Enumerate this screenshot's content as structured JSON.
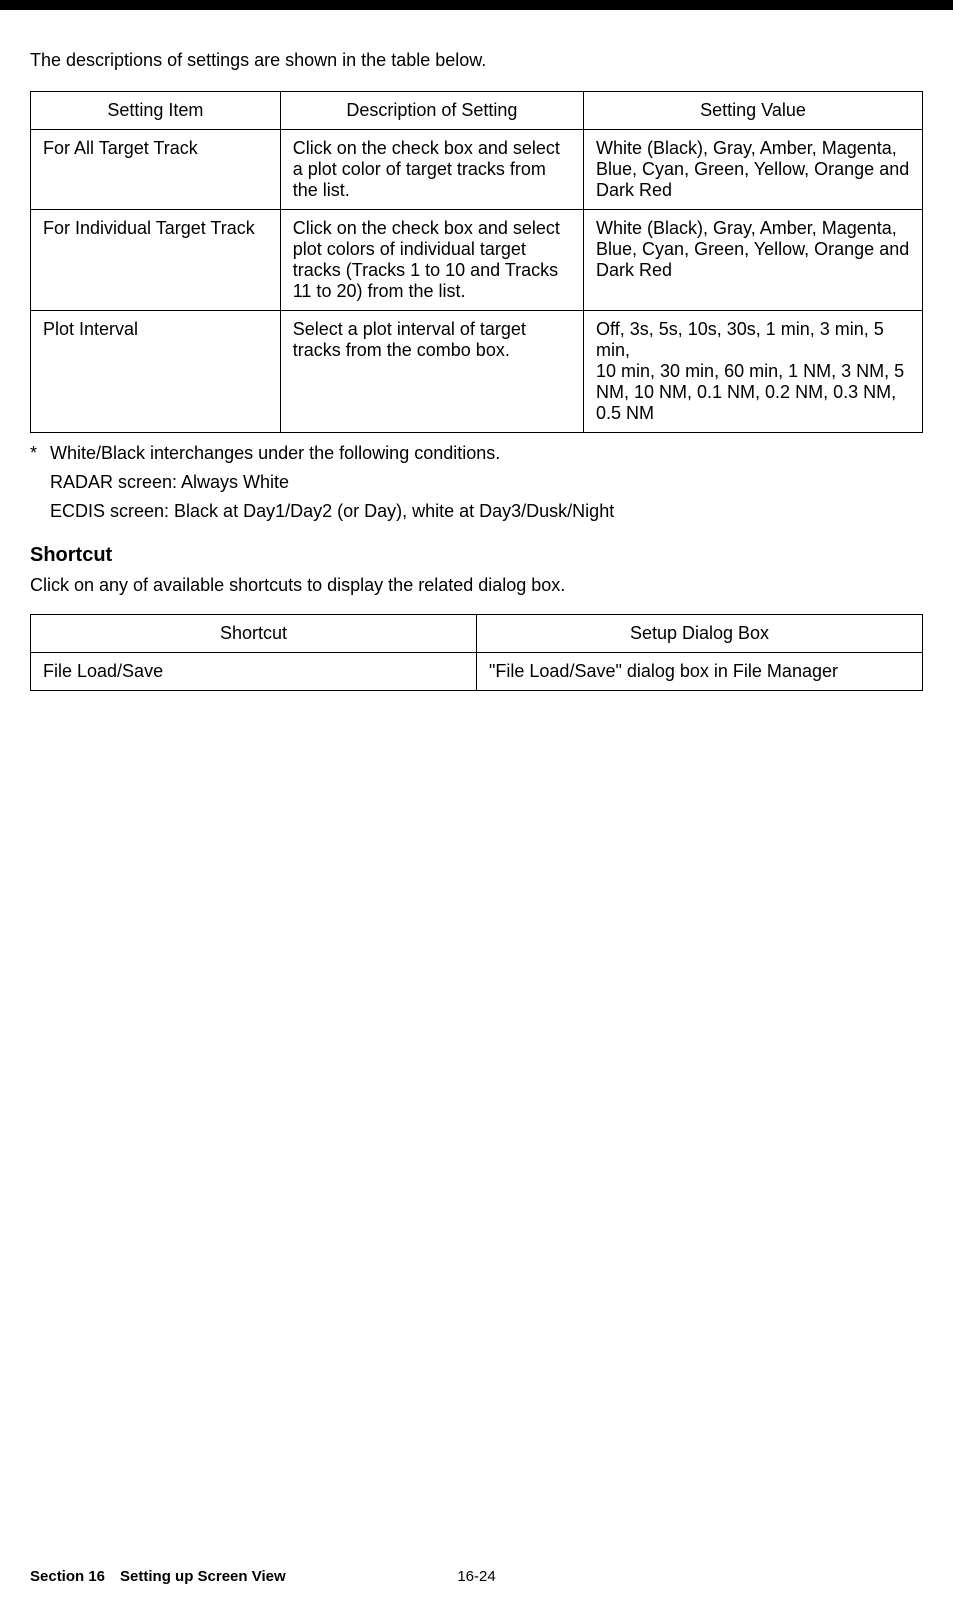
{
  "intro": "The descriptions of settings are shown in the table below.",
  "table1": {
    "headers": [
      "Setting Item",
      "Description of Setting",
      "Setting Value"
    ],
    "rows": [
      {
        "item": "For All Target Track",
        "desc": "Click on the check box and select a plot color of target tracks from the list.",
        "value": "White (Black), Gray, Amber, Magenta, Blue, Cyan, Green, Yellow, Orange and Dark Red"
      },
      {
        "item": "For Individual Target Track",
        "desc": "Click on the check box and select plot colors of individual target tracks (Tracks 1 to 10 and Tracks 11 to 20) from the list.",
        "value": "White (Black), Gray, Amber, Magenta, Blue, Cyan, Green, Yellow, Orange and Dark Red"
      },
      {
        "item": "Plot Interval",
        "desc": "Select a plot interval of target tracks from the combo box.",
        "value": "Off, 3s, 5s, 10s, 30s, 1 min, 3 min, 5 min,\n10 min, 30 min, 60 min, 1 NM, 3 NM, 5 NM, 10 NM, 0.1 NM, 0.2 NM, 0.3 NM, 0.5 NM"
      }
    ]
  },
  "footnote": {
    "star": "*",
    "main": "White/Black interchanges under the following conditions.",
    "line1": "RADAR screen: Always White",
    "line2": "ECDIS screen: Black at Day1/Day2 (or Day), white at Day3/Dusk/Night"
  },
  "shortcut": {
    "heading": "Shortcut",
    "body": "Click on any of available shortcuts to display the related dialog box.",
    "headers": [
      "Shortcut",
      "Setup Dialog Box"
    ],
    "rows": [
      {
        "sc": "File Load/Save",
        "dlg": "\"File Load/Save\" dialog box in File Manager"
      }
    ]
  },
  "footer": {
    "section": "Section 16 Setting up Screen View",
    "page": "16-24"
  }
}
